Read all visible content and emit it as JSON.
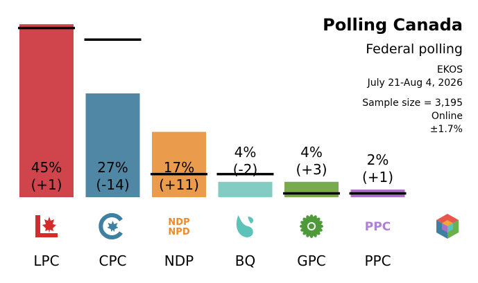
{
  "header": {
    "title": "Polling Canada",
    "subtitle": "Federal polling",
    "pollster": "EKOS",
    "dates": "July 21-Aug 4, 2026",
    "sample": "Sample size = 3,195",
    "mode": "Online",
    "margin": "±1.7%"
  },
  "chart_data": {
    "type": "bar",
    "title": "Polling Canada",
    "subtitle": "Federal polling",
    "categories": [
      "LPC",
      "CPC",
      "NDP",
      "BQ",
      "GPC",
      "PPC"
    ],
    "values": [
      45,
      27,
      17,
      4,
      4,
      2
    ],
    "value_labels": [
      "45%",
      "27%",
      "17%",
      "4%",
      "4%",
      "2%"
    ],
    "change_labels": [
      "(+1)",
      "(-14)",
      "(+11)",
      "(-2)",
      "(+3)",
      "(+1)"
    ],
    "previous_values": [
      44,
      41,
      6,
      6,
      1,
      1
    ],
    "colors": [
      "#d0444c",
      "#4f87a4",
      "#eb9b4c",
      "#83ccc3",
      "#7aaa4e",
      "#a970c9"
    ],
    "icons": [
      "lpc-logo-icon",
      "cpc-logo-icon",
      "ndp-logo-icon",
      "bq-logo-icon",
      "gpc-logo-icon",
      "ppc-logo-icon",
      "other-parties-icon"
    ],
    "ylim": [
      0,
      45
    ],
    "grid": false,
    "legend": "none",
    "xlabel": "",
    "ylabel": ""
  }
}
